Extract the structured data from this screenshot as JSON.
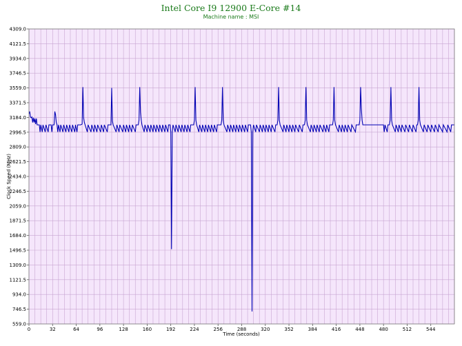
{
  "chart_data": {
    "type": "line",
    "title": "Intel Core I9 12900 E-Core #14",
    "subtitle": "Machine name : MSI",
    "xlabel": "Time (seconds)",
    "ylabel": "Clock Speed (MHz)",
    "xlim": [
      0,
      576
    ],
    "ylim": [
      559.0,
      4309.0
    ],
    "x_ticks": [
      "0",
      "32",
      "64",
      "96",
      "128",
      "160",
      "192",
      "224",
      "256",
      "288",
      "320",
      "352",
      "384",
      "416",
      "448",
      "480",
      "512",
      "544"
    ],
    "y_ticks": [
      "559.0",
      "746.5",
      "934.0",
      "1121.5",
      "1309.0",
      "1496.5",
      "1684.0",
      "1871.5",
      "2059.0",
      "2246.5",
      "2434.0",
      "2621.5",
      "2809.0",
      "2996.5",
      "3184.0",
      "3371.5",
      "3559.0",
      "3746.5",
      "3934.0",
      "4121.5",
      "4309.0"
    ],
    "grid": true,
    "line_color": "#0000b4",
    "plot_background": "#f5e6fb",
    "grid_color": "#c8a5d2",
    "series": [
      {
        "values": [
          [
            0,
            3230
          ],
          [
            1,
            3260
          ],
          [
            2,
            3190
          ],
          [
            3,
            3180
          ],
          [
            4,
            3190
          ],
          [
            5,
            3120
          ],
          [
            6,
            3180
          ],
          [
            7,
            3120
          ],
          [
            8,
            3170
          ],
          [
            9,
            3100
          ],
          [
            10,
            3170
          ],
          [
            11,
            3090
          ],
          [
            14,
            3090
          ],
          [
            15,
            3000
          ],
          [
            16,
            3090
          ],
          [
            18,
            3000
          ],
          [
            19,
            3090
          ],
          [
            22,
            3000
          ],
          [
            23,
            3090
          ],
          [
            26,
            3000
          ],
          [
            27,
            3090
          ],
          [
            30,
            3090
          ],
          [
            31,
            3000
          ],
          [
            32,
            3090
          ],
          [
            34,
            3090
          ],
          [
            35,
            3260
          ],
          [
            36,
            3220
          ],
          [
            37,
            3120
          ],
          [
            38,
            3090
          ],
          [
            39,
            3000
          ],
          [
            40,
            3090
          ],
          [
            42,
            3000
          ],
          [
            43,
            3090
          ],
          [
            46,
            3000
          ],
          [
            47,
            3090
          ],
          [
            50,
            3000
          ],
          [
            51,
            3090
          ],
          [
            54,
            3000
          ],
          [
            55,
            3090
          ],
          [
            58,
            3000
          ],
          [
            59,
            3090
          ],
          [
            62,
            3000
          ],
          [
            63,
            3090
          ],
          [
            65,
            3000
          ],
          [
            66,
            3090
          ],
          [
            70,
            3090
          ],
          [
            72,
            3100
          ],
          [
            73,
            3570
          ],
          [
            74,
            3180
          ],
          [
            75,
            3120
          ],
          [
            76,
            3090
          ],
          [
            79,
            3000
          ],
          [
            80,
            3090
          ],
          [
            84,
            3000
          ],
          [
            85,
            3090
          ],
          [
            88,
            3000
          ],
          [
            89,
            3090
          ],
          [
            92,
            3000
          ],
          [
            93,
            3090
          ],
          [
            97,
            3000
          ],
          [
            98,
            3090
          ],
          [
            101,
            3000
          ],
          [
            102,
            3090
          ],
          [
            106,
            3000
          ],
          [
            107,
            3090
          ],
          [
            111,
            3090
          ],
          [
            112,
            3560
          ],
          [
            113,
            3140
          ],
          [
            114,
            3090
          ],
          [
            118,
            3000
          ],
          [
            119,
            3090
          ],
          [
            122,
            3000
          ],
          [
            123,
            3090
          ],
          [
            127,
            3000
          ],
          [
            128,
            3090
          ],
          [
            131,
            3000
          ],
          [
            132,
            3090
          ],
          [
            135,
            3000
          ],
          [
            136,
            3090
          ],
          [
            139,
            3000
          ],
          [
            140,
            3090
          ],
          [
            144,
            3000
          ],
          [
            145,
            3090
          ],
          [
            148,
            3090
          ],
          [
            149,
            3150
          ],
          [
            150,
            3570
          ],
          [
            151,
            3250
          ],
          [
            152,
            3150
          ],
          [
            153,
            3090
          ],
          [
            156,
            3000
          ],
          [
            157,
            3090
          ],
          [
            160,
            3000
          ],
          [
            161,
            3090
          ],
          [
            164,
            3000
          ],
          [
            165,
            3090
          ],
          [
            168,
            3000
          ],
          [
            169,
            3090
          ],
          [
            172,
            3000
          ],
          [
            173,
            3090
          ],
          [
            176,
            3000
          ],
          [
            177,
            3090
          ],
          [
            180,
            3000
          ],
          [
            181,
            3090
          ],
          [
            184,
            3000
          ],
          [
            185,
            3090
          ],
          [
            188,
            3000
          ],
          [
            189,
            3090
          ],
          [
            191,
            3090
          ],
          [
            192,
            3000
          ],
          [
            193,
            1510
          ],
          [
            194,
            3000
          ],
          [
            195,
            3090
          ],
          [
            198,
            3000
          ],
          [
            199,
            3090
          ],
          [
            202,
            3000
          ],
          [
            203,
            3090
          ],
          [
            206,
            3000
          ],
          [
            207,
            3090
          ],
          [
            210,
            3000
          ],
          [
            211,
            3090
          ],
          [
            214,
            3000
          ],
          [
            215,
            3090
          ],
          [
            218,
            3000
          ],
          [
            219,
            3090
          ],
          [
            223,
            3090
          ],
          [
            224,
            3150
          ],
          [
            225,
            3570
          ],
          [
            226,
            3150
          ],
          [
            227,
            3090
          ],
          [
            230,
            3000
          ],
          [
            231,
            3090
          ],
          [
            234,
            3000
          ],
          [
            235,
            3090
          ],
          [
            238,
            3000
          ],
          [
            239,
            3090
          ],
          [
            242,
            3000
          ],
          [
            243,
            3090
          ],
          [
            246,
            3000
          ],
          [
            247,
            3090
          ],
          [
            250,
            3000
          ],
          [
            251,
            3090
          ],
          [
            254,
            3000
          ],
          [
            255,
            3090
          ],
          [
            258,
            3090
          ],
          [
            260,
            3090
          ],
          [
            261,
            3150
          ],
          [
            262,
            3570
          ],
          [
            263,
            3150
          ],
          [
            264,
            3090
          ],
          [
            268,
            3000
          ],
          [
            269,
            3090
          ],
          [
            272,
            3000
          ],
          [
            273,
            3090
          ],
          [
            276,
            3000
          ],
          [
            277,
            3090
          ],
          [
            280,
            3000
          ],
          [
            281,
            3090
          ],
          [
            284,
            3000
          ],
          [
            285,
            3090
          ],
          [
            288,
            3000
          ],
          [
            289,
            3090
          ],
          [
            292,
            3000
          ],
          [
            293,
            3090
          ],
          [
            296,
            3000
          ],
          [
            297,
            3090
          ],
          [
            300,
            3090
          ],
          [
            301,
            3000
          ],
          [
            302,
            718
          ],
          [
            303,
            3000
          ],
          [
            304,
            3090
          ],
          [
            307,
            3000
          ],
          [
            308,
            3090
          ],
          [
            312,
            3000
          ],
          [
            313,
            3090
          ],
          [
            316,
            3000
          ],
          [
            317,
            3090
          ],
          [
            320,
            3000
          ],
          [
            321,
            3090
          ],
          [
            324,
            3000
          ],
          [
            325,
            3090
          ],
          [
            328,
            3000
          ],
          [
            329,
            3090
          ],
          [
            333,
            3000
          ],
          [
            334,
            3090
          ],
          [
            336,
            3090
          ],
          [
            337,
            3150
          ],
          [
            338,
            3570
          ],
          [
            339,
            3150
          ],
          [
            340,
            3090
          ],
          [
            344,
            3000
          ],
          [
            345,
            3090
          ],
          [
            348,
            3000
          ],
          [
            349,
            3090
          ],
          [
            352,
            3000
          ],
          [
            353,
            3090
          ],
          [
            356,
            3000
          ],
          [
            357,
            3090
          ],
          [
            360,
            3000
          ],
          [
            361,
            3090
          ],
          [
            365,
            3000
          ],
          [
            366,
            3090
          ],
          [
            370,
            3000
          ],
          [
            371,
            3090
          ],
          [
            373,
            3090
          ],
          [
            374,
            3150
          ],
          [
            375,
            3570
          ],
          [
            376,
            3150
          ],
          [
            377,
            3090
          ],
          [
            381,
            3000
          ],
          [
            382,
            3090
          ],
          [
            385,
            3000
          ],
          [
            386,
            3090
          ],
          [
            389,
            3000
          ],
          [
            390,
            3090
          ],
          [
            393,
            3000
          ],
          [
            394,
            3090
          ],
          [
            398,
            3000
          ],
          [
            399,
            3090
          ],
          [
            402,
            3000
          ],
          [
            403,
            3090
          ],
          [
            406,
            3000
          ],
          [
            407,
            3090
          ],
          [
            411,
            3090
          ],
          [
            412,
            3150
          ],
          [
            413,
            3570
          ],
          [
            414,
            3150
          ],
          [
            415,
            3090
          ],
          [
            419,
            3000
          ],
          [
            420,
            3090
          ],
          [
            423,
            3000
          ],
          [
            424,
            3090
          ],
          [
            427,
            3000
          ],
          [
            428,
            3090
          ],
          [
            431,
            3000
          ],
          [
            432,
            3090
          ],
          [
            436,
            3000
          ],
          [
            437,
            3090
          ],
          [
            442,
            3000
          ],
          [
            443,
            3090
          ],
          [
            447,
            3090
          ],
          [
            448,
            3150
          ],
          [
            449,
            3570
          ],
          [
            450,
            3300
          ],
          [
            451,
            3150
          ],
          [
            452,
            3090
          ],
          [
            480,
            3090
          ],
          [
            481,
            3000
          ],
          [
            482,
            3090
          ],
          [
            485,
            3000
          ],
          [
            486,
            3090
          ],
          [
            488,
            3090
          ],
          [
            489,
            3150
          ],
          [
            490,
            3570
          ],
          [
            491,
            3150
          ],
          [
            492,
            3090
          ],
          [
            496,
            3000
          ],
          [
            497,
            3090
          ],
          [
            500,
            3000
          ],
          [
            501,
            3090
          ],
          [
            504,
            3000
          ],
          [
            505,
            3090
          ],
          [
            509,
            3000
          ],
          [
            510,
            3090
          ],
          [
            514,
            3000
          ],
          [
            515,
            3090
          ],
          [
            519,
            3000
          ],
          [
            520,
            3090
          ],
          [
            524,
            3000
          ],
          [
            525,
            3090
          ],
          [
            526,
            3090
          ],
          [
            527,
            3150
          ],
          [
            528,
            3570
          ],
          [
            529,
            3150
          ],
          [
            530,
            3090
          ],
          [
            534,
            3000
          ],
          [
            535,
            3090
          ],
          [
            539,
            3000
          ],
          [
            540,
            3090
          ],
          [
            544,
            3000
          ],
          [
            545,
            3090
          ],
          [
            549,
            3000
          ],
          [
            550,
            3090
          ],
          [
            554,
            3000
          ],
          [
            555,
            3090
          ],
          [
            560,
            3000
          ],
          [
            561,
            3090
          ],
          [
            566,
            3000
          ],
          [
            567,
            3090
          ],
          [
            571,
            3000
          ],
          [
            572,
            3090
          ],
          [
            576,
            3090
          ]
        ]
      }
    ]
  }
}
